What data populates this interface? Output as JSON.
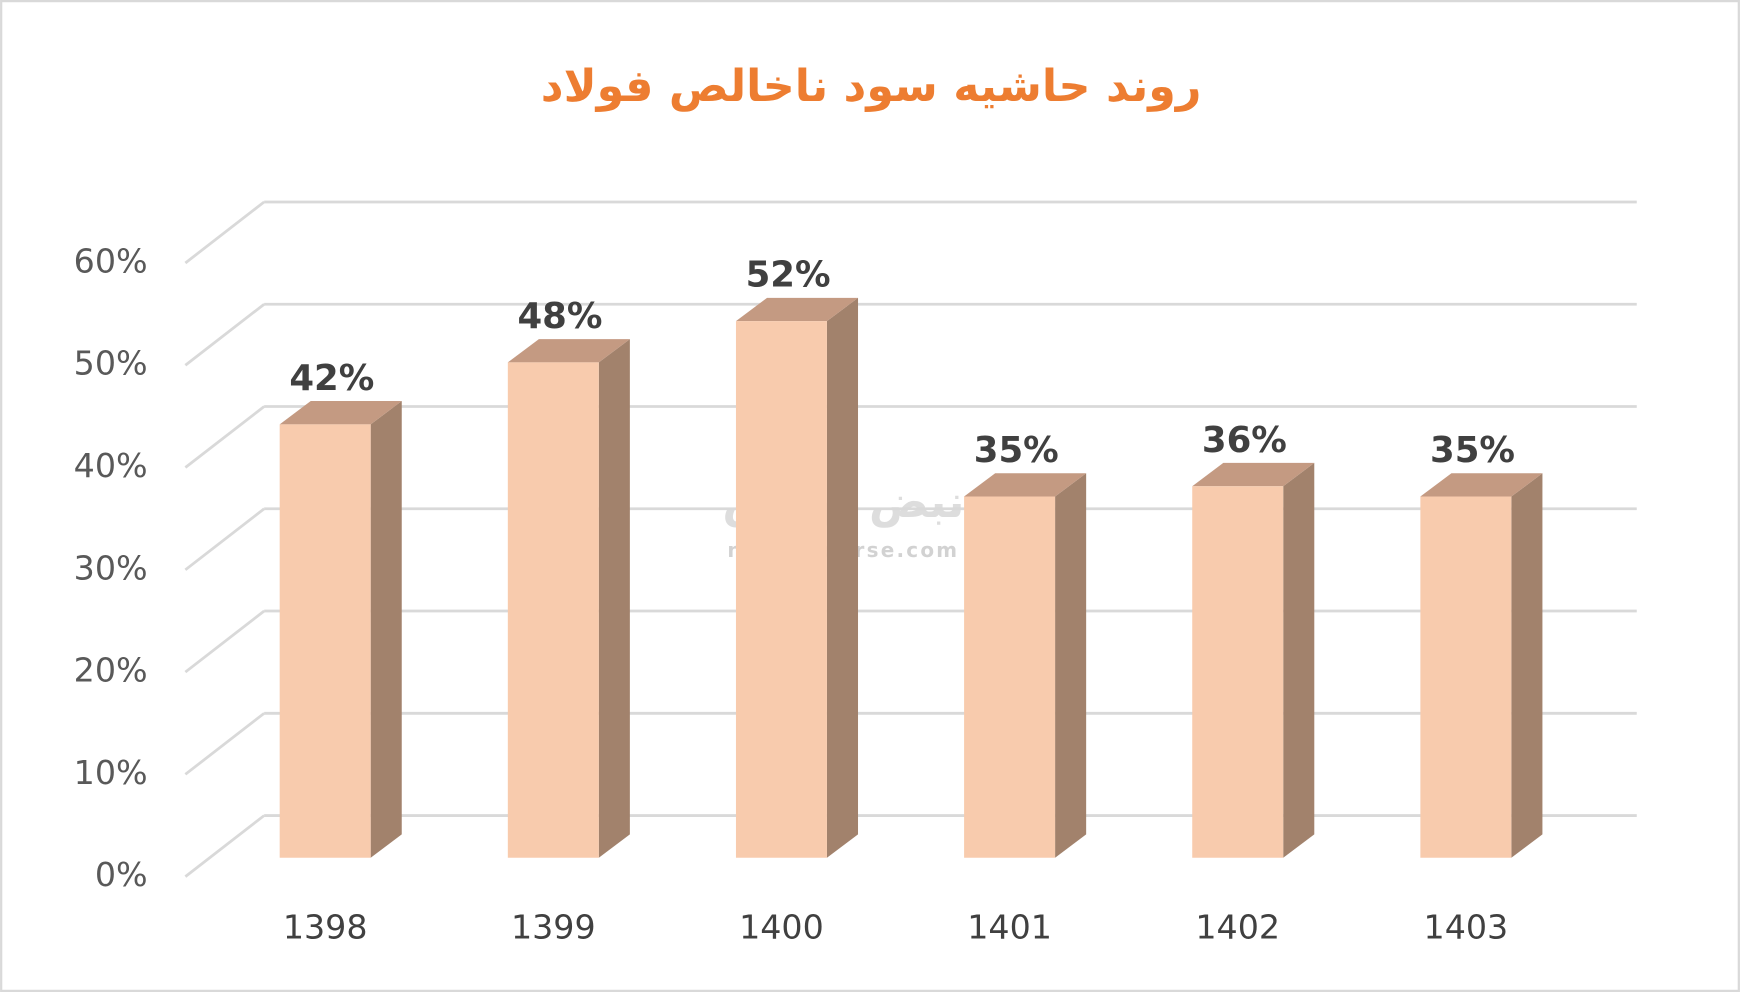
{
  "chart_data": {
    "type": "bar3d",
    "title": "روند حاشیه سود ناخالص فولاد",
    "categories": [
      "1398",
      "1399",
      "1400",
      "1401",
      "1402",
      "1403"
    ],
    "values": [
      42,
      48,
      52,
      35,
      36,
      35
    ],
    "value_labels": [
      "42%",
      "48%",
      "52%",
      "35%",
      "36%",
      "35%"
    ],
    "colors": {
      "front": "#f8cbad",
      "side": "#a2826c",
      "top": "#c49a82"
    },
    "ylim": [
      0,
      60
    ],
    "yticks": [
      {
        "value": 0,
        "label": "0%"
      },
      {
        "value": 10,
        "label": "10%"
      },
      {
        "value": 20,
        "label": "20%"
      },
      {
        "value": 30,
        "label": "30%"
      },
      {
        "value": 40,
        "label": "40%"
      },
      {
        "value": 50,
        "label": "50%"
      },
      {
        "value": 60,
        "label": "60%"
      }
    ],
    "grid": true,
    "watermark": {
      "logo": "نبض بورس",
      "site": "nabzebourse.com"
    }
  }
}
